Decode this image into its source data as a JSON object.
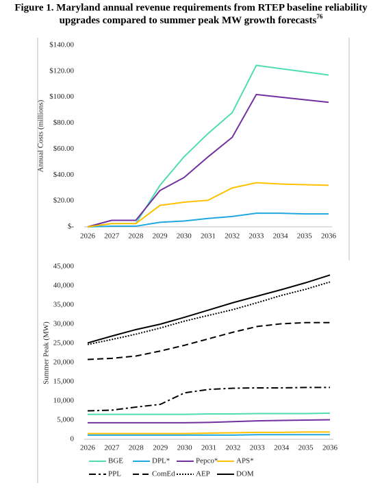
{
  "figure": {
    "title_line1": "Figure 1. Maryland annual revenue requirements from RTEP baseline reliability",
    "title_line2": "upgrades compared to summer peak MW growth forecasts",
    "footnote": "76"
  },
  "chart_data": [
    {
      "type": "line",
      "y_label": "Annual Costs (millions)",
      "categories": [
        "2026",
        "2027",
        "2028",
        "2029",
        "2030",
        "2031",
        "2032",
        "2033",
        "2034",
        "2035",
        "2036"
      ],
      "ylim": [
        0,
        140
      ],
      "yticks": [
        {
          "value": 0,
          "label": "$-"
        },
        {
          "value": 20,
          "label": "$20.00"
        },
        {
          "value": 40,
          "label": "$40.00"
        },
        {
          "value": 60,
          "label": "$60.00"
        },
        {
          "value": 80,
          "label": "$80.00"
        },
        {
          "value": 100,
          "label": "$100.00"
        },
        {
          "value": 120,
          "label": "$120.00"
        },
        {
          "value": 140,
          "label": "$140.00"
        }
      ],
      "series": [
        {
          "color": "#4fdcb3",
          "values": [
            0,
            2.5,
            2.5,
            32,
            54,
            72,
            88,
            124.5,
            122,
            119.5,
            117
          ]
        },
        {
          "color": "#1ea7e1",
          "values": [
            0,
            0.5,
            0.5,
            3.5,
            4.5,
            6.5,
            8,
            10.5,
            10.5,
            10,
            10
          ]
        },
        {
          "color": "#7030a0",
          "values": [
            0,
            5,
            5,
            28,
            38,
            54,
            69,
            102,
            100,
            98,
            96
          ]
        },
        {
          "color": "#ffc000",
          "values": [
            0,
            2.5,
            2.5,
            16.5,
            19,
            20.5,
            30,
            34,
            33,
            32.5,
            32
          ]
        }
      ]
    },
    {
      "type": "line",
      "y_label": "Summer Peak (MW)",
      "categories": [
        "2026",
        "2027",
        "2028",
        "2029",
        "2030",
        "2031",
        "2032",
        "2033",
        "2034",
        "2035",
        "2036"
      ],
      "ylim": [
        0,
        45000
      ],
      "yticks": [
        0,
        {
          "value": 5000,
          "label": "5,000"
        },
        {
          "value": 10000,
          "label": "10,000"
        },
        {
          "value": 15000,
          "label": "15,000"
        },
        {
          "value": 20000,
          "label": "20,000"
        },
        {
          "value": 25000,
          "label": "25,000"
        },
        {
          "value": 30000,
          "label": "30,000"
        },
        {
          "value": 35000,
          "label": "35,000"
        },
        {
          "value": 40000,
          "label": "40,000"
        },
        {
          "value": 45000,
          "label": "45,000"
        }
      ],
      "legend": "bottom",
      "series": [
        {
          "name": "BGE",
          "color": "#4fdcb3",
          "dash": "solid",
          "values": [
            6500,
            6500,
            6500,
            6500,
            6500,
            6600,
            6600,
            6700,
            6700,
            6700,
            6800
          ]
        },
        {
          "name": "DPL*",
          "color": "#1ea7e1",
          "dash": "solid",
          "values": [
            1100,
            1100,
            1100,
            1100,
            1100,
            1100,
            1100,
            1200,
            1200,
            1200,
            1200
          ]
        },
        {
          "name": "Pepco*",
          "color": "#7030a0",
          "dash": "solid",
          "values": [
            4300,
            4300,
            4300,
            4300,
            4300,
            4400,
            4600,
            4800,
            4900,
            5000,
            5100
          ]
        },
        {
          "name": "APS*",
          "color": "#ffc000",
          "dash": "solid",
          "values": [
            1500,
            1500,
            1500,
            1500,
            1500,
            1600,
            1700,
            1800,
            1800,
            1900,
            1900
          ]
        },
        {
          "name": "PPL",
          "color": "#000000",
          "dash": "dashdot",
          "values": [
            7400,
            7600,
            8400,
            9100,
            12100,
            13000,
            13300,
            13400,
            13400,
            13500,
            13500
          ]
        },
        {
          "name": "ComEd",
          "color": "#000000",
          "dash": "dashed",
          "values": [
            20800,
            21100,
            21700,
            23000,
            24500,
            26200,
            27900,
            29400,
            30100,
            30400,
            30400
          ]
        },
        {
          "name": "AEP",
          "color": "#000000",
          "dash": "dotted",
          "values": [
            24700,
            26000,
            27400,
            29000,
            30800,
            32300,
            33800,
            35600,
            37500,
            39100,
            41000
          ]
        },
        {
          "name": "DOM",
          "color": "#000000",
          "dash": "solid",
          "values": [
            25100,
            26900,
            28600,
            30000,
            31800,
            33700,
            35600,
            37300,
            39000,
            40800,
            42800
          ]
        }
      ]
    }
  ]
}
